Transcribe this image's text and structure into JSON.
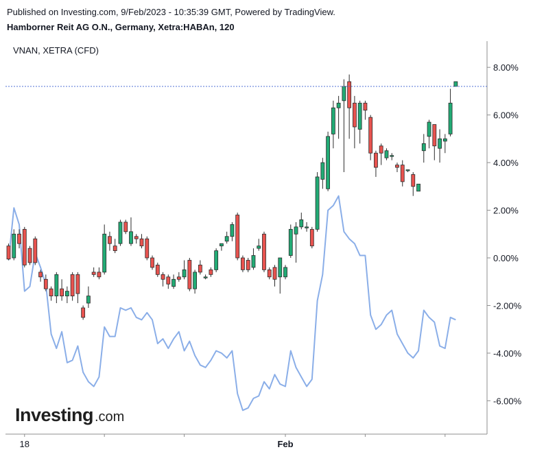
{
  "header": {
    "published": "Published on Investing.com, 9/Feb/2023 - 10:35:39 GMT, Powered by TradingView.",
    "symbol_title": "Hamborner Reit AG O.N., Germany, Xetra:HABAn, 120",
    "compare_label": "VNAN, XETRA (CFD)"
  },
  "logo": {
    "main": "Investing",
    "sub": ".com"
  },
  "chart_data": {
    "type": "candlestick",
    "title": "Hamborner Reit AG O.N., Germany, Xetra:HABAn, 120",
    "y_unit": "% change",
    "ylim": [
      -7.4,
      9.1
    ],
    "y_ticks": [
      8.0,
      6.0,
      4.0,
      2.0,
      0.0,
      -2.0,
      -4.0,
      -6.0
    ],
    "y_tick_labels": [
      "8.00%",
      "6.00%",
      "4.00%",
      "2.00%",
      "0.00%",
      "-2.00%",
      "-4.00%",
      "-6.00%"
    ],
    "x_tick_labels": [
      {
        "label": "18",
        "bar": 3,
        "bold": false
      },
      {
        "label": "",
        "bar": 18,
        "bold": false
      },
      {
        "label": "",
        "bar": 33,
        "bold": false
      },
      {
        "label": "Feb",
        "bar": 52,
        "bold": true
      },
      {
        "label": "",
        "bar": 67,
        "bold": false
      },
      {
        "label": "",
        "bar": 82,
        "bold": false
      }
    ],
    "last_price_line": 7.2,
    "colors": {
      "up": "#26a69a",
      "up_fill": "#22ab75",
      "down": "#ef5350",
      "down_fill": "#e8534f",
      "line": "#8aaee8",
      "price_line": "#4f6fd6",
      "wick": "#2b2b2b"
    },
    "candles": [
      [
        0.5,
        -0.05,
        0.6,
        -0.1
      ],
      [
        0.0,
        1.0,
        1.2,
        -0.1
      ],
      [
        1.0,
        0.6,
        1.2,
        0.4
      ],
      [
        1.2,
        -0.3,
        1.3,
        -0.4
      ],
      [
        0.4,
        -0.2,
        0.5,
        -0.3
      ],
      [
        0.8,
        -0.2,
        0.9,
        -0.3
      ],
      [
        -0.6,
        -0.8,
        -0.5,
        -1.0
      ],
      [
        -0.9,
        -1.3,
        -0.7,
        -1.4
      ],
      [
        -1.3,
        -1.6,
        -1.2,
        -1.8
      ],
      [
        -1.6,
        -0.7,
        -0.6,
        -1.9
      ],
      [
        -1.3,
        -1.6,
        -0.9,
        -1.8
      ],
      [
        -1.6,
        -1.4,
        -1.2,
        -1.9
      ],
      [
        -0.7,
        -1.6,
        -0.6,
        -1.8
      ],
      [
        -0.7,
        -1.5,
        -0.6,
        -1.9
      ],
      [
        -2.1,
        -2.5,
        -2.0,
        -2.6
      ],
      [
        -1.9,
        -1.6,
        -1.2,
        -2.1
      ],
      [
        -0.6,
        -0.7,
        -0.4,
        -0.8
      ],
      [
        -0.6,
        -0.8,
        -0.4,
        -0.9
      ],
      [
        -0.6,
        1.0,
        1.4,
        -0.7
      ],
      [
        0.9,
        0.6,
        1.1,
        0.3
      ],
      [
        0.5,
        0.3,
        0.8,
        0.2
      ],
      [
        0.6,
        1.5,
        1.6,
        0.5
      ],
      [
        1.5,
        1.1,
        1.6,
        1.0
      ],
      [
        0.6,
        1.1,
        1.7,
        0.5
      ],
      [
        0.9,
        0.8,
        1.0,
        0.6
      ],
      [
        0.8,
        0.5,
        1.0,
        0.4
      ],
      [
        0.8,
        0.0,
        0.9,
        -0.1
      ],
      [
        0.0,
        -0.4,
        0.1,
        -0.5
      ],
      [
        -0.3,
        -0.7,
        -0.2,
        -0.8
      ],
      [
        -0.7,
        -0.9,
        -0.6,
        -1.2
      ],
      [
        -0.8,
        -1.1,
        -0.7,
        -1.3
      ],
      [
        -1.2,
        -0.9,
        -0.7,
        -1.3
      ],
      [
        -0.8,
        -0.9,
        -0.6,
        -1.0
      ],
      [
        -0.8,
        -0.5,
        -0.1,
        -0.9
      ],
      [
        -0.1,
        -1.3,
        0.0,
        -1.4
      ],
      [
        -1.3,
        -0.6,
        -0.5,
        -1.5
      ],
      [
        -0.3,
        -0.6,
        -0.1,
        -0.7
      ],
      [
        -0.8,
        -0.8,
        -0.7,
        -0.9
      ],
      [
        -0.5,
        -0.7,
        -0.4,
        -0.8
      ],
      [
        -0.5,
        0.3,
        0.4,
        -0.6
      ],
      [
        0.5,
        0.6,
        0.6,
        0.3
      ],
      [
        0.7,
        0.9,
        1.1,
        0.6
      ],
      [
        0.9,
        1.4,
        1.5,
        0.7
      ],
      [
        1.8,
        0.0,
        1.9,
        -0.1
      ],
      [
        0.0,
        -0.5,
        0.1,
        -0.6
      ],
      [
        -0.1,
        -0.5,
        0.0,
        -0.6
      ],
      [
        -0.4,
        0.1,
        0.4,
        -0.5
      ],
      [
        0.4,
        0.5,
        0.8,
        0.3
      ],
      [
        1.0,
        -0.5,
        1.1,
        -0.6
      ],
      [
        -0.5,
        -0.8,
        -0.4,
        -0.9
      ],
      [
        -0.4,
        -0.9,
        -0.3,
        -1.2
      ],
      [
        -0.8,
        0.0,
        0.0,
        -1.5
      ],
      [
        -0.8,
        -0.4,
        -0.3,
        -0.9
      ],
      [
        0.1,
        1.2,
        1.4,
        0.0
      ],
      [
        1.0,
        1.3,
        1.5,
        -0.2
      ],
      [
        1.3,
        1.6,
        1.9,
        1.2
      ],
      [
        1.3,
        1.3,
        1.5,
        1.1
      ],
      [
        1.2,
        0.5,
        1.3,
        0.4
      ],
      [
        1.2,
        3.4,
        3.6,
        1.1
      ],
      [
        3.3,
        4.0,
        4.2,
        2.9
      ],
      [
        2.9,
        5.1,
        5.3,
        2.8
      ],
      [
        5.2,
        6.3,
        6.6,
        4.6
      ],
      [
        6.3,
        6.5,
        6.8,
        5.0
      ],
      [
        6.6,
        7.2,
        7.5,
        3.6
      ],
      [
        7.4,
        6.3,
        7.7,
        5.0
      ],
      [
        6.5,
        5.5,
        6.8,
        4.6
      ],
      [
        5.4,
        6.5,
        6.6,
        4.8
      ],
      [
        6.5,
        6.2,
        6.6,
        5.8
      ],
      [
        5.9,
        4.4,
        6.0,
        4.1
      ],
      [
        4.4,
        3.8,
        4.5,
        3.4
      ],
      [
        4.7,
        4.4,
        4.8,
        3.9
      ],
      [
        4.2,
        4.5,
        4.6,
        4.1
      ],
      [
        4.3,
        4.3,
        4.4,
        4.1
      ],
      [
        3.9,
        3.8,
        4.0,
        3.6
      ],
      [
        3.9,
        3.2,
        4.1,
        3.0
      ],
      [
        3.7,
        3.7,
        3.7,
        3.6
      ],
      [
        3.5,
        3.0,
        3.6,
        2.6
      ],
      [
        2.8,
        3.1,
        3.1,
        2.8
      ],
      [
        4.5,
        4.8,
        5.2,
        4.0
      ],
      [
        5.1,
        5.7,
        5.8,
        4.6
      ],
      [
        5.6,
        4.7,
        5.6,
        4.1
      ],
      [
        4.6,
        5.0,
        5.4,
        4.0
      ],
      [
        4.9,
        5.0,
        5.2,
        4.4
      ],
      [
        5.2,
        6.5,
        7.1,
        5.1
      ],
      [
        7.2,
        7.4,
        7.4,
        7.2
      ]
    ],
    "compare_line": {
      "name": "VNAN, XETRA (CFD)",
      "values": [
        -0.1,
        2.1,
        1.4,
        -1.4,
        -1.2,
        0.2,
        -0.4,
        -1.1,
        -3.2,
        -3.8,
        -3.1,
        -4.4,
        -4.3,
        -3.7,
        -4.8,
        -5.2,
        -5.4,
        -5.0,
        -2.9,
        -3.3,
        -3.3,
        -2.1,
        -2.2,
        -2.1,
        -2.5,
        -2.6,
        -2.3,
        -2.6,
        -3.6,
        -3.4,
        -3.8,
        -3.4,
        -3.1,
        -3.9,
        -3.5,
        -4.1,
        -4.5,
        -4.6,
        -4.3,
        -3.9,
        -4.0,
        -4.2,
        -3.9,
        -5.7,
        -6.4,
        -6.3,
        -5.9,
        -5.8,
        -5.2,
        -5.5,
        -4.9,
        -5.3,
        -5.4,
        -3.9,
        -4.6,
        -5.0,
        -5.4,
        -5.1,
        -1.8,
        -0.7,
        2.0,
        2.2,
        2.6,
        1.1,
        0.8,
        0.6,
        0.1,
        0.1,
        -2.4,
        -3.0,
        -2.8,
        -2.4,
        -2.2,
        -3.2,
        -3.6,
        -4.0,
        -4.2,
        -3.9,
        -2.2,
        -2.5,
        -2.7,
        -3.7,
        -3.8,
        -2.5,
        -2.6
      ]
    }
  }
}
